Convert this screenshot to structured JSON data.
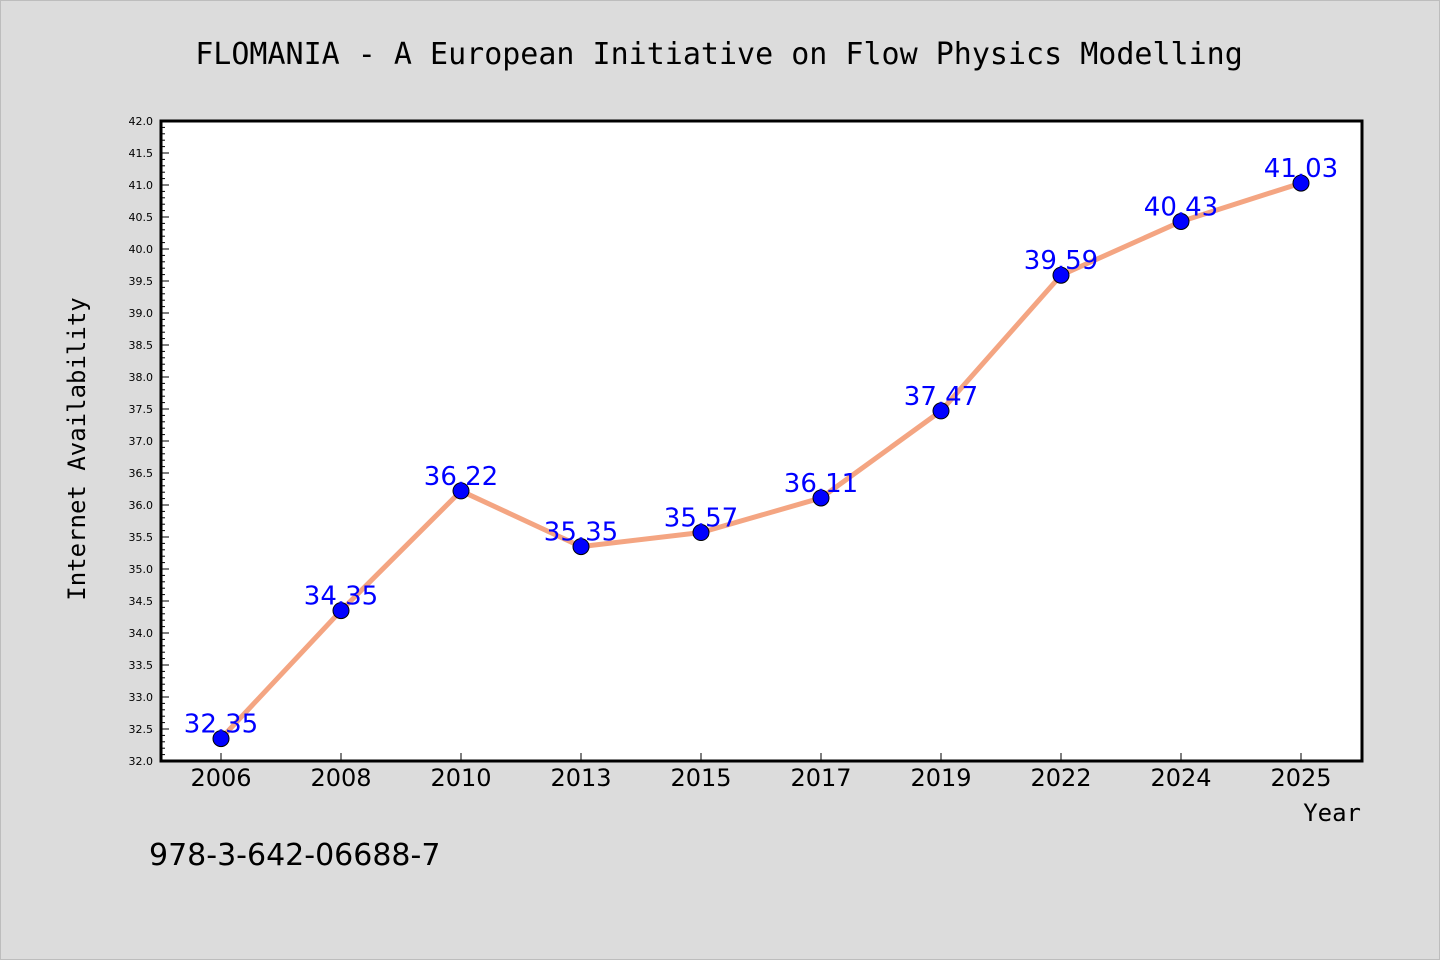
{
  "page": {
    "footer": "978-3-642-06688-7"
  },
  "colors": {
    "background": "#dcdcdc",
    "plot_background": "#ffffff",
    "line": "#f4a582",
    "marker": "#0000ff",
    "data_label": "#0000ff"
  },
  "chart_data": {
    "type": "line",
    "title": "FLOMANIA - A European Initiative on Flow Physics Modelling",
    "xlabel": "Year",
    "ylabel": "Internet Availability",
    "categories": [
      "2006",
      "2008",
      "2010",
      "2013",
      "2015",
      "2017",
      "2019",
      "2022",
      "2024",
      "2025"
    ],
    "series": [
      {
        "values": [
          32.35,
          34.35,
          36.22,
          35.35,
          35.57,
          36.11,
          37.47,
          39.59,
          40.43,
          41.03
        ]
      }
    ],
    "data_labels": [
      "32.35",
      "34.35",
      "36.22",
      "35.35",
      "35.57",
      "36.11",
      "37.47",
      "39.59",
      "40.43",
      "41.03"
    ],
    "ylim": [
      32.0,
      42.0
    ],
    "yticks": [
      "32.0",
      "32.5",
      "33.0",
      "33.5",
      "34.0",
      "34.5",
      "35.0",
      "35.5",
      "36.0",
      "36.5",
      "37.0",
      "37.5",
      "38.0",
      "38.5",
      "39.0",
      "39.5",
      "40.0",
      "40.5",
      "41.0",
      "41.5",
      "42.0"
    ],
    "grid": false,
    "legend": "none"
  }
}
